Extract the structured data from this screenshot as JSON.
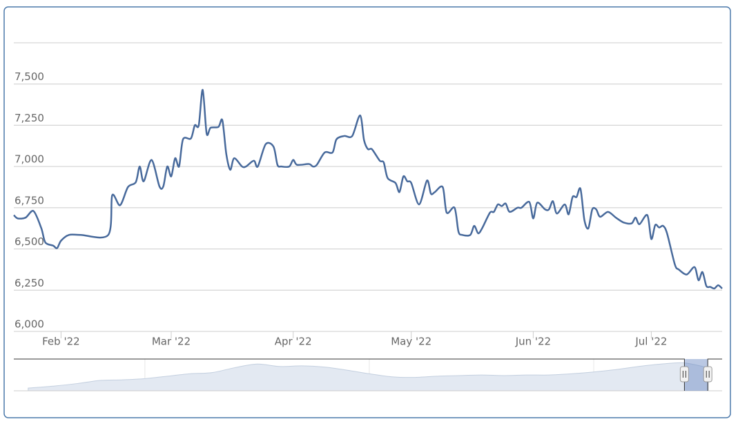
{
  "chart_data": [
    {
      "type": "line",
      "color": "#47699b",
      "x": [
        20,
        21,
        23,
        25,
        27,
        28,
        30,
        31,
        32,
        34,
        37,
        44,
        45,
        47,
        49,
        51,
        52,
        53,
        55,
        57,
        58,
        59,
        60,
        61,
        62,
        63,
        65,
        66,
        67,
        68,
        69,
        70,
        72,
        73,
        74,
        75,
        76,
        78,
        79,
        81,
        82,
        84,
        86,
        87,
        88,
        90,
        91,
        92,
        95,
        96,
        97,
        99,
        101,
        102,
        104,
        106,
        108,
        109,
        110,
        111,
        113,
        114,
        115,
        117,
        118,
        119,
        120,
        121,
        123,
        125,
        126,
        127,
        129,
        130,
        132,
        133,
        134,
        136,
        137,
        138,
        139,
        141,
        142,
        143,
        144,
        145,
        146,
        148,
        149,
        151,
        152,
        153,
        155,
        156,
        157,
        158,
        160,
        161,
        162,
        163,
        164,
        165,
        166,
        167,
        168,
        169,
        171,
        173,
        175,
        177,
        178,
        179,
        181,
        182,
        183,
        184,
        185,
        186,
        188,
        189,
        191,
        193,
        194,
        195,
        196,
        197,
        198,
        199,
        200
      ],
      "values": [
        6705,
        6685,
        6690,
        6730,
        6625,
        6540,
        6520,
        6505,
        6550,
        6585,
        6585,
        6585,
        6825,
        6765,
        6875,
        6905,
        7000,
        6910,
        7040,
        6880,
        6880,
        7000,
        6940,
        7050,
        7000,
        7165,
        7170,
        7250,
        7250,
        7465,
        7200,
        7235,
        7240,
        7280,
        7075,
        6980,
        7050,
        7000,
        7000,
        7035,
        7000,
        7135,
        7120,
        7010,
        7000,
        7000,
        7040,
        7010,
        7015,
        7000,
        7010,
        7085,
        7085,
        7165,
        7185,
        7185,
        7310,
        7160,
        7105,
        7105,
        7035,
        7025,
        6930,
        6900,
        6845,
        6940,
        6910,
        6900,
        6770,
        6915,
        6835,
        6845,
        6875,
        6720,
        6750,
        6605,
        6585,
        6585,
        6640,
        6595,
        6625,
        6720,
        6725,
        6770,
        6760,
        6775,
        6725,
        6750,
        6750,
        6785,
        6685,
        6780,
        6740,
        6740,
        6790,
        6715,
        6770,
        6710,
        6815,
        6815,
        6865,
        6675,
        6625,
        6740,
        6740,
        6695,
        6725,
        6690,
        6660,
        6655,
        6690,
        6650,
        6705,
        6560,
        6645,
        6630,
        6640,
        6595,
        6405,
        6375,
        6345,
        6390,
        6310,
        6360,
        6275,
        6270,
        6260,
        6280,
        6260
      ],
      "xlim": [
        20,
        200
      ],
      "xticks": [
        {
          "value": 32,
          "label": "Feb '22"
        },
        {
          "value": 60,
          "label": "Mar '22"
        },
        {
          "value": 91,
          "label": "Apr '22"
        },
        {
          "value": 121,
          "label": "May '22"
        },
        {
          "value": 152,
          "label": "Jun '22"
        },
        {
          "value": 182,
          "label": "Jul '22"
        }
      ],
      "ylim": [
        6000,
        7750
      ],
      "yticks": [
        {
          "value": 6000,
          "label": "6,000"
        },
        {
          "value": 6250,
          "label": "6,250"
        },
        {
          "value": 6500,
          "label": "6,500"
        },
        {
          "value": 6750,
          "label": "6,750"
        },
        {
          "value": 7000,
          "label": "7,000"
        },
        {
          "value": 7250,
          "label": "7,250"
        },
        {
          "value": 7500,
          "label": "7,500"
        }
      ],
      "grid": true
    },
    {
      "type": "area",
      "color": "#e3e9f2",
      "x": [
        2007.4,
        2008,
        2008.5,
        2009,
        2009.5,
        2010,
        2010.5,
        2011,
        2011.5,
        2012,
        2012.5,
        2013,
        2013.5,
        2014,
        2014.5,
        2015,
        2015.5,
        2016,
        2016.5,
        2017,
        2017.5,
        2018,
        2018.5,
        2019,
        2019.5,
        2020,
        2020.5,
        2021,
        2021.5,
        2022,
        2022.55
      ],
      "values": [
        2950,
        3300,
        3700,
        4200,
        4300,
        4500,
        4900,
        5300,
        5500,
        6300,
        6900,
        6500,
        6600,
        6400,
        5900,
        5300,
        4800,
        4700,
        4900,
        5000,
        5100,
        5000,
        5100,
        5100,
        5300,
        5600,
        6000,
        6500,
        6900,
        7100,
        6300
      ],
      "xlim": [
        2007.08,
        2022.86
      ],
      "xticks": [
        2010,
        2015,
        2020
      ],
      "ylim": [
        2500,
        7500
      ],
      "selected_range": [
        2022.02,
        2022.54
      ]
    }
  ]
}
